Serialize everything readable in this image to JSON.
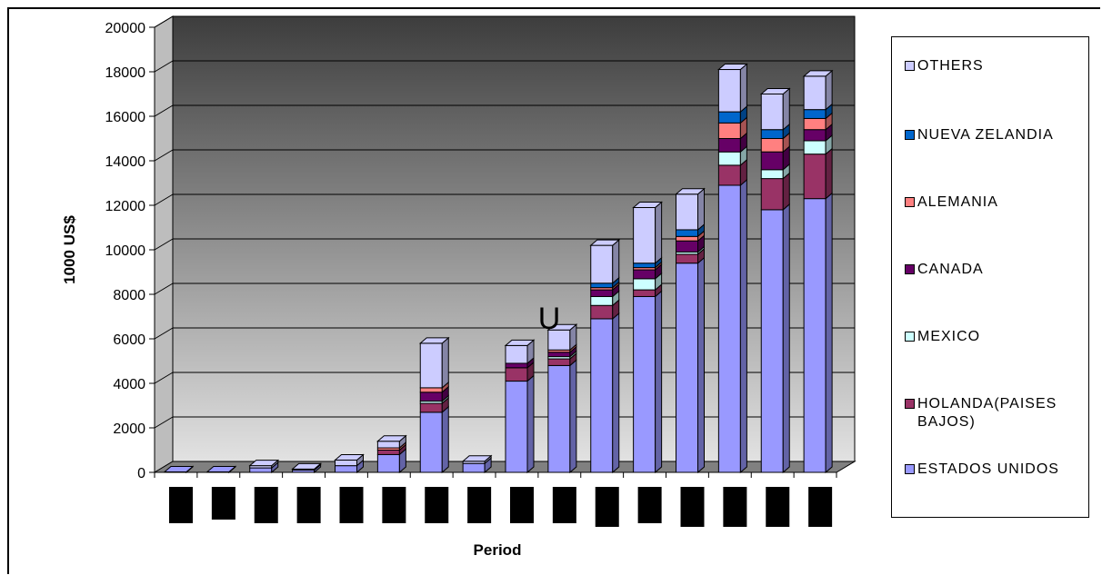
{
  "chart_data": {
    "type": "bar",
    "stacked": true,
    "ylabel": "1000 US$",
    "xlabel": "Period",
    "ylim": [
      0,
      20000
    ],
    "yticks": [
      "0",
      "2000",
      "4000",
      "6000",
      "8000",
      "10000",
      "12000",
      "14000",
      "16000",
      "18000",
      "20000"
    ],
    "grid": true,
    "legend_position": "right",
    "annotation": "U",
    "categories": [
      "",
      "",
      "",
      "",
      "",
      "",
      "",
      "",
      "",
      "",
      "",
      "",
      "",
      "",
      "",
      ""
    ],
    "series": [
      {
        "name": "ESTADOS UNIDOS",
        "color": "#9999ff",
        "values": [
          20,
          20,
          200,
          100,
          300,
          800,
          2700,
          400,
          4100,
          4800,
          6900,
          7900,
          9400,
          12900,
          11800,
          12300
        ]
      },
      {
        "name": "HOLANDA(PAISES BAJOS)",
        "color": "#993366",
        "values": [
          0,
          0,
          0,
          0,
          0,
          200,
          400,
          0,
          600,
          300,
          600,
          300,
          400,
          900,
          1400,
          2000
        ]
      },
      {
        "name": "MEXICO",
        "color": "#ccffff",
        "values": [
          0,
          0,
          0,
          0,
          0,
          0,
          100,
          0,
          0,
          100,
          400,
          500,
          100,
          600,
          400,
          600
        ]
      },
      {
        "name": "CANADA",
        "color": "#660066",
        "values": [
          0,
          0,
          0,
          0,
          0,
          0,
          400,
          0,
          200,
          200,
          300,
          400,
          500,
          600,
          800,
          500
        ]
      },
      {
        "name": "ALEMANIA",
        "color": "#ff8080",
        "values": [
          0,
          0,
          0,
          0,
          0,
          100,
          200,
          0,
          0,
          100,
          100,
          100,
          200,
          700,
          600,
          500
        ]
      },
      {
        "name": "NUEVA ZELANDIA",
        "color": "#0066cc",
        "values": [
          0,
          0,
          0,
          0,
          0,
          0,
          0,
          0,
          0,
          0,
          200,
          200,
          300,
          500,
          400,
          400
        ]
      },
      {
        "name": "OTHERS",
        "color": "#ccccff",
        "values": [
          0,
          0,
          100,
          50,
          250,
          300,
          2000,
          100,
          800,
          900,
          1700,
          2500,
          1600,
          1900,
          1600,
          1500
        ]
      }
    ]
  }
}
